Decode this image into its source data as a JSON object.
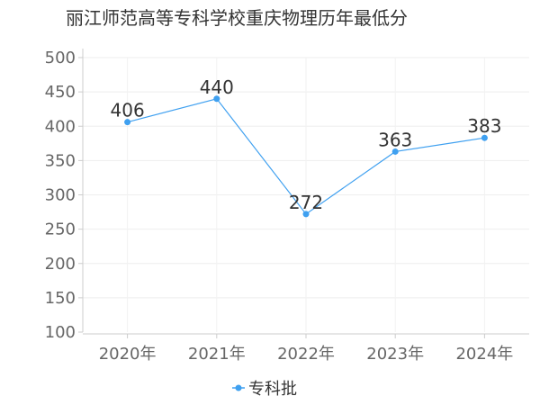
{
  "chart_data": {
    "type": "line",
    "title": "丽江师范高等专科学校重庆物理历年最低分",
    "categories": [
      "2020年",
      "2021年",
      "2022年",
      "2023年",
      "2024年"
    ],
    "series": [
      {
        "name": "专科批",
        "values": [
          406,
          440,
          272,
          363,
          383
        ],
        "color": "#3fa0f0"
      }
    ],
    "ylim": [
      100,
      500
    ],
    "yticks": [
      "100",
      "150",
      "200",
      "250",
      "300",
      "350",
      "400",
      "450",
      "500"
    ],
    "grid": true,
    "legend": "bottom-center"
  }
}
